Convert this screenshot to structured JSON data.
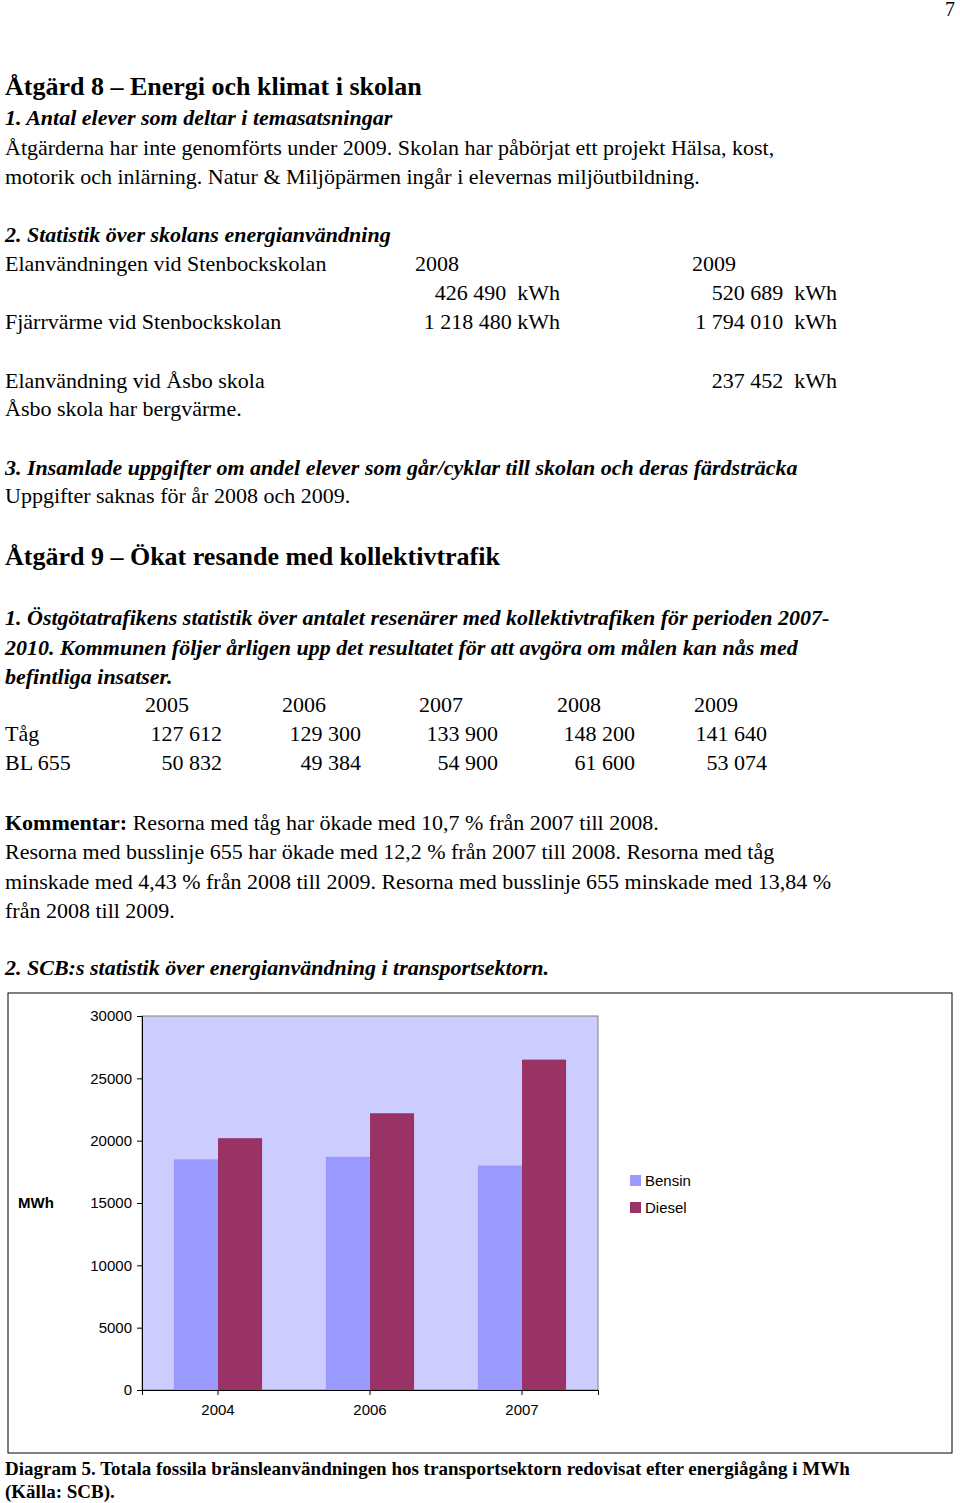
{
  "page": {
    "page_number": "7",
    "section_8": {
      "title": "Åtgärd 8 – Energi och klimat i skolan",
      "item_1": {
        "heading": "1. Antal elever som deltar i temasatsningar",
        "lines": [
          "Åtgärderna har inte genomförts under 2009. Skolan har påbörjat ett projekt Hälsa, kost,",
          "motorik och inlärning. Natur & Miljöpärmen ingår i elevernas miljöutbildning."
        ]
      },
      "item_2": {
        "heading": "2. Statistik över skolans energianvändning",
        "table": {
          "rows": [
            [
              "Elanvändningen vid Stenbockskolan",
              "2008",
              "2009"
            ],
            [
              null,
              "426 490  kWh",
              "520 689  kWh"
            ],
            [
              "Fjärrvärme vid Stenbockskolan",
              "1 218 480 kWh",
              "1 794 010  kWh"
            ],
            [
              "Elanvändning vid Åsbo skola",
              null,
              "237 452  kWh"
            ]
          ]
        },
        "note": "Åsbo skola har bergvärme."
      },
      "item_3": {
        "heading": "3. Insamlade uppgifter om andel elever som går/cyklar till skolan och deras färdsträcka",
        "lines": [
          "Uppgifter saknas för år 2008 och 2009."
        ]
      }
    },
    "section_9": {
      "title": "Åtgärd 9 – Ökat resande med kollektivtrafik",
      "item_1": {
        "heading_lines": [
          "1. Östgötatrafikens statistik över antalet resenärer med kollektivtrafiken för perioden 2007-",
          "2010. Kommunen följer årligen upp det resultatet för att avgöra om målen kan nås med",
          "befintliga insatser."
        ],
        "table": {
          "header": [
            "2005",
            "2006",
            "2007",
            "2008",
            "2009"
          ],
          "rows": [
            {
              "label": "Tåg",
              "values": [
                "127 612",
                "129 300",
                "133 900",
                "148 200",
                "141 640"
              ]
            },
            {
              "label": "BL 655",
              "values": [
                "50 832",
                "49 384",
                "54 900",
                "61 600",
                "53 074"
              ]
            }
          ]
        },
        "comment": {
          "label": "Kommentar:",
          "lines": [
            " Resorna med tåg har ökade med 10,7 % från 2007 till 2008.",
            "Resorna med busslinje 655 har ökade med 12,2 % från 2007 till 2008. Resorna med tåg",
            "minskade med 4,43 % från 2008 till 2009. Resorna med busslinje 655 minskade med 13,84 %",
            "från 2008 till 2009."
          ]
        }
      },
      "item_2": {
        "heading": "2. SCB:s statistik över energianvändning i transportsektorn."
      }
    },
    "caption": {
      "lines": [
        "Diagram 5. Totala fossila bränsleanvändningen hos transportsektorn redovisat efter energiågång i MWh",
        "(Källa: SCB)."
      ]
    }
  },
  "chart_data": {
    "type": "bar",
    "y_label": "MWh",
    "categories": [
      "2004",
      "2006",
      "2007"
    ],
    "series": [
      {
        "name": "Bensin",
        "color": "#9999ff",
        "values": [
          18500,
          18700,
          18000
        ]
      },
      {
        "name": "Diesel",
        "color": "#993366",
        "values": [
          20200,
          22200,
          26500
        ]
      }
    ],
    "ylim": [
      0,
      30000
    ],
    "yticks": [
      0,
      5000,
      10000,
      15000,
      20000,
      25000,
      30000
    ],
    "grid": false,
    "legend": "right"
  }
}
